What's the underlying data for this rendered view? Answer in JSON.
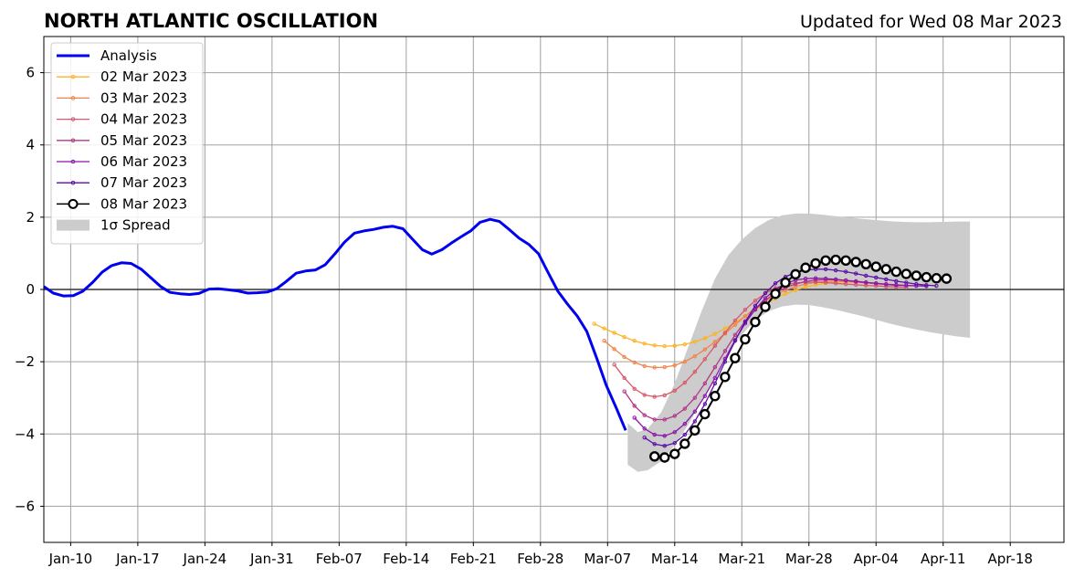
{
  "title": "NORTH ATLANTIC OSCILLATION",
  "updated": "Updated for Wed 08 Mar 2023",
  "chart_data": {
    "type": "line",
    "xlim": [
      -4,
      148
    ],
    "ylim": [
      -7,
      7
    ],
    "yticks": [
      -6,
      -4,
      -2,
      0,
      2,
      4,
      6
    ],
    "ytick_labels": [
      "−6",
      "−4",
      "−2",
      "0",
      "2",
      "4",
      "6"
    ],
    "xticks": [
      0,
      10,
      20,
      30,
      40,
      50,
      60,
      70,
      80,
      90,
      100,
      110,
      120,
      130,
      140
    ],
    "xtick_labels": [
      "Jan-10",
      "Jan-17",
      "Jan-24",
      "Jan-31",
      "Feb-07",
      "Feb-14",
      "Feb-21",
      "Feb-28",
      "Mar-07",
      "Mar-14",
      "Mar-21",
      "Mar-28",
      "Apr-04",
      "Apr-11",
      "Apr-18"
    ],
    "grid": true,
    "zero_line": true,
    "legend_position": "upper-left",
    "analysis": {
      "name": "Analysis",
      "color": "#0000ee",
      "x": [
        -4,
        -2.6,
        -1.1,
        0.4,
        1.8,
        3.3,
        4.7,
        6.1,
        7.6,
        9,
        10.5,
        11.9,
        13.4,
        14.8,
        16.3,
        17.7,
        19.1,
        20.6,
        22,
        23.5,
        24.9,
        26.4,
        27.8,
        29.3,
        30.7,
        32.1,
        33.6,
        35,
        36.5,
        37.9,
        39.4,
        40.8,
        42.3,
        43.7,
        45.1,
        46.6,
        48,
        49.5,
        50.9,
        52.4,
        53.8,
        55.3,
        56.7,
        58.1,
        59.6,
        61,
        62.5,
        63.9,
        65.4,
        66.8,
        68.3,
        69.7,
        71.1,
        72.6,
        74,
        75.5,
        76.9,
        78.4,
        79.8,
        81.3,
        82.7
      ],
      "y": [
        0.08,
        -0.1,
        -0.18,
        -0.17,
        -0.05,
        0.2,
        0.48,
        0.66,
        0.74,
        0.72,
        0.56,
        0.33,
        0.08,
        -0.08,
        -0.12,
        -0.14,
        -0.11,
        0.01,
        0.02,
        -0.01,
        -0.04,
        -0.1,
        -0.09,
        -0.07,
        0.02,
        0.22,
        0.45,
        0.51,
        0.54,
        0.68,
        0.99,
        1.31,
        1.56,
        1.62,
        1.66,
        1.72,
        1.75,
        1.68,
        1.4,
        1.1,
        0.98,
        1.1,
        1.28,
        1.45,
        1.62,
        1.86,
        1.94,
        1.88,
        1.65,
        1.42,
        1.24,
        0.99,
        0.48,
        -0.05,
        -0.4,
        -0.74,
        -1.16,
        -1.91,
        -2.65,
        -3.28,
        -3.9
      ]
    },
    "spread": {
      "name": "1σ Spread",
      "color": "#cccccc",
      "x": [
        83,
        84.5,
        86,
        88,
        90,
        92,
        94,
        96,
        98,
        100,
        102,
        104,
        106,
        108,
        110,
        112,
        114,
        116,
        118,
        120,
        122,
        124,
        126,
        128,
        130,
        132,
        134
      ],
      "upper": [
        -3.7,
        -3.95,
        -3.85,
        -3.4,
        -2.6,
        -1.6,
        -0.6,
        0.3,
        0.95,
        1.38,
        1.7,
        1.92,
        2.05,
        2.1,
        2.1,
        2.07,
        2.03,
        1.99,
        1.95,
        1.92,
        1.89,
        1.87,
        1.86,
        1.86,
        1.87,
        1.88,
        1.88
      ],
      "lower": [
        -4.85,
        -5.05,
        -5.0,
        -4.75,
        -4.3,
        -3.75,
        -3.1,
        -2.4,
        -1.75,
        -1.25,
        -0.85,
        -0.6,
        -0.47,
        -0.42,
        -0.43,
        -0.49,
        -0.56,
        -0.65,
        -0.74,
        -0.84,
        -0.94,
        -1.03,
        -1.11,
        -1.18,
        -1.24,
        -1.3,
        -1.34
      ]
    },
    "series": [
      {
        "name": "02 Mar 2023",
        "color": "#fcb326",
        "marker": "dot",
        "x": [
          78,
          79.5,
          81,
          82.5,
          84,
          85.5,
          87,
          88.5,
          90,
          91.5,
          93,
          94.5,
          96,
          97.5,
          99,
          100.5,
          102,
          103.5,
          105,
          106.5,
          108,
          109.5,
          111,
          112.5,
          114,
          115.5,
          117,
          118.5,
          120,
          121.5
        ],
        "y": [
          -0.95,
          -1.08,
          -1.2,
          -1.32,
          -1.42,
          -1.5,
          -1.55,
          -1.57,
          -1.56,
          -1.52,
          -1.45,
          -1.35,
          -1.23,
          -1.08,
          -0.92,
          -0.74,
          -0.56,
          -0.4,
          -0.25,
          -0.12,
          -0.02,
          0.07,
          0.13,
          0.17,
          0.2,
          0.21,
          0.2,
          0.19,
          0.17,
          0.15
        ]
      },
      {
        "name": "03 Mar 2023",
        "color": "#f1844b",
        "marker": "dot",
        "x": [
          79.5,
          81,
          82.5,
          84,
          85.5,
          87,
          88.5,
          90,
          91.5,
          93,
          94.5,
          96,
          97.5,
          99,
          100.5,
          102,
          103.5,
          105,
          106.5,
          108,
          109.5,
          111,
          112.5,
          114,
          115.5,
          117,
          118.5,
          120,
          121.5,
          123
        ],
        "y": [
          -1.42,
          -1.65,
          -1.87,
          -2.02,
          -2.12,
          -2.16,
          -2.15,
          -2.1,
          -2.0,
          -1.85,
          -1.66,
          -1.45,
          -1.22,
          -0.98,
          -0.74,
          -0.52,
          -0.32,
          -0.15,
          -0.02,
          0.08,
          0.15,
          0.2,
          0.22,
          0.23,
          0.22,
          0.2,
          0.18,
          0.16,
          0.14,
          0.12
        ]
      },
      {
        "name": "04 Mar 2023",
        "color": "#d75a6a",
        "marker": "dot",
        "x": [
          81,
          82.5,
          84,
          85.5,
          87,
          88.5,
          90,
          91.5,
          93,
          94.5,
          96,
          97.5,
          99,
          100.5,
          102,
          103.5,
          105,
          106.5,
          108,
          109.5,
          111,
          112.5,
          114,
          115.5,
          117,
          118.5,
          120,
          121.5,
          123,
          124.5
        ],
        "y": [
          -2.08,
          -2.45,
          -2.75,
          -2.92,
          -2.97,
          -2.93,
          -2.8,
          -2.58,
          -2.28,
          -1.93,
          -1.56,
          -1.2,
          -0.86,
          -0.56,
          -0.31,
          -0.11,
          0.04,
          0.13,
          0.18,
          0.2,
          0.2,
          0.19,
          0.17,
          0.15,
          0.13,
          0.11,
          0.1,
          0.08,
          0.07,
          0.06
        ]
      },
      {
        "name": "05 Mar 2023",
        "color": "#b2398a",
        "marker": "dot",
        "x": [
          82.5,
          84,
          85.5,
          87,
          88.5,
          90,
          91.5,
          93,
          94.5,
          96,
          97.5,
          99,
          100.5,
          102,
          103.5,
          105,
          106.5,
          108,
          109.5,
          111,
          112.5,
          114,
          115.5,
          117,
          118.5,
          120,
          121.5,
          123,
          124.5,
          126
        ],
        "y": [
          -2.82,
          -3.22,
          -3.48,
          -3.6,
          -3.6,
          -3.5,
          -3.3,
          -3.0,
          -2.6,
          -2.15,
          -1.7,
          -1.26,
          -0.88,
          -0.56,
          -0.3,
          -0.1,
          0.05,
          0.15,
          0.22,
          0.26,
          0.27,
          0.27,
          0.25,
          0.23,
          0.2,
          0.17,
          0.15,
          0.13,
          0.11,
          0.1
        ]
      },
      {
        "name": "06 Mar 2023",
        "color": "#8b16a8",
        "marker": "dot",
        "x": [
          84,
          85.5,
          87,
          88.5,
          90,
          91.5,
          93,
          94.5,
          96,
          97.5,
          99,
          100.5,
          102,
          103.5,
          105,
          106.5,
          108,
          109.5,
          111,
          112.5,
          114,
          115.5,
          117,
          118.5,
          120,
          121.5,
          123,
          124.5,
          126,
          127.5
        ],
        "y": [
          -3.55,
          -3.85,
          -4.02,
          -4.05,
          -3.95,
          -3.72,
          -3.38,
          -2.95,
          -2.45,
          -1.92,
          -1.4,
          -0.94,
          -0.55,
          -0.24,
          0.0,
          0.16,
          0.26,
          0.3,
          0.31,
          0.3,
          0.28,
          0.25,
          0.22,
          0.19,
          0.17,
          0.14,
          0.12,
          0.11,
          0.1,
          0.09
        ]
      },
      {
        "name": "07 Mar 2023",
        "color": "#5c0ea6",
        "marker": "dot",
        "x": [
          85.5,
          87,
          88.5,
          90,
          91.5,
          93,
          94.5,
          96,
          97.5,
          99,
          100.5,
          102,
          103.5,
          105,
          106.5,
          108,
          109.5,
          111,
          112.5,
          114,
          115.5,
          117,
          118.5,
          120,
          121.5,
          123,
          124.5,
          126,
          127.5,
          129
        ],
        "y": [
          -4.1,
          -4.28,
          -4.33,
          -4.25,
          -4.02,
          -3.65,
          -3.17,
          -2.6,
          -2.0,
          -1.42,
          -0.9,
          -0.45,
          -0.1,
          0.17,
          0.35,
          0.47,
          0.53,
          0.56,
          0.56,
          0.53,
          0.49,
          0.44,
          0.38,
          0.33,
          0.28,
          0.23,
          0.19,
          0.15,
          0.12,
          0.1
        ]
      },
      {
        "name": "08 Mar 2023",
        "color": "#000000",
        "marker": "circle",
        "x": [
          87,
          88.5,
          90,
          91.5,
          93,
          94.5,
          96,
          97.5,
          99,
          100.5,
          102,
          103.5,
          105,
          106.5,
          108,
          109.5,
          111,
          112.5,
          114,
          115.5,
          117,
          118.5,
          120,
          121.5,
          123,
          124.5,
          126,
          127.5,
          129,
          130.5
        ],
        "y": [
          -4.62,
          -4.65,
          -4.55,
          -4.27,
          -3.9,
          -3.45,
          -2.95,
          -2.42,
          -1.9,
          -1.38,
          -0.9,
          -0.48,
          -0.12,
          0.19,
          0.42,
          0.6,
          0.72,
          0.8,
          0.82,
          0.8,
          0.76,
          0.7,
          0.63,
          0.56,
          0.49,
          0.43,
          0.38,
          0.34,
          0.31,
          0.3
        ]
      }
    ]
  }
}
